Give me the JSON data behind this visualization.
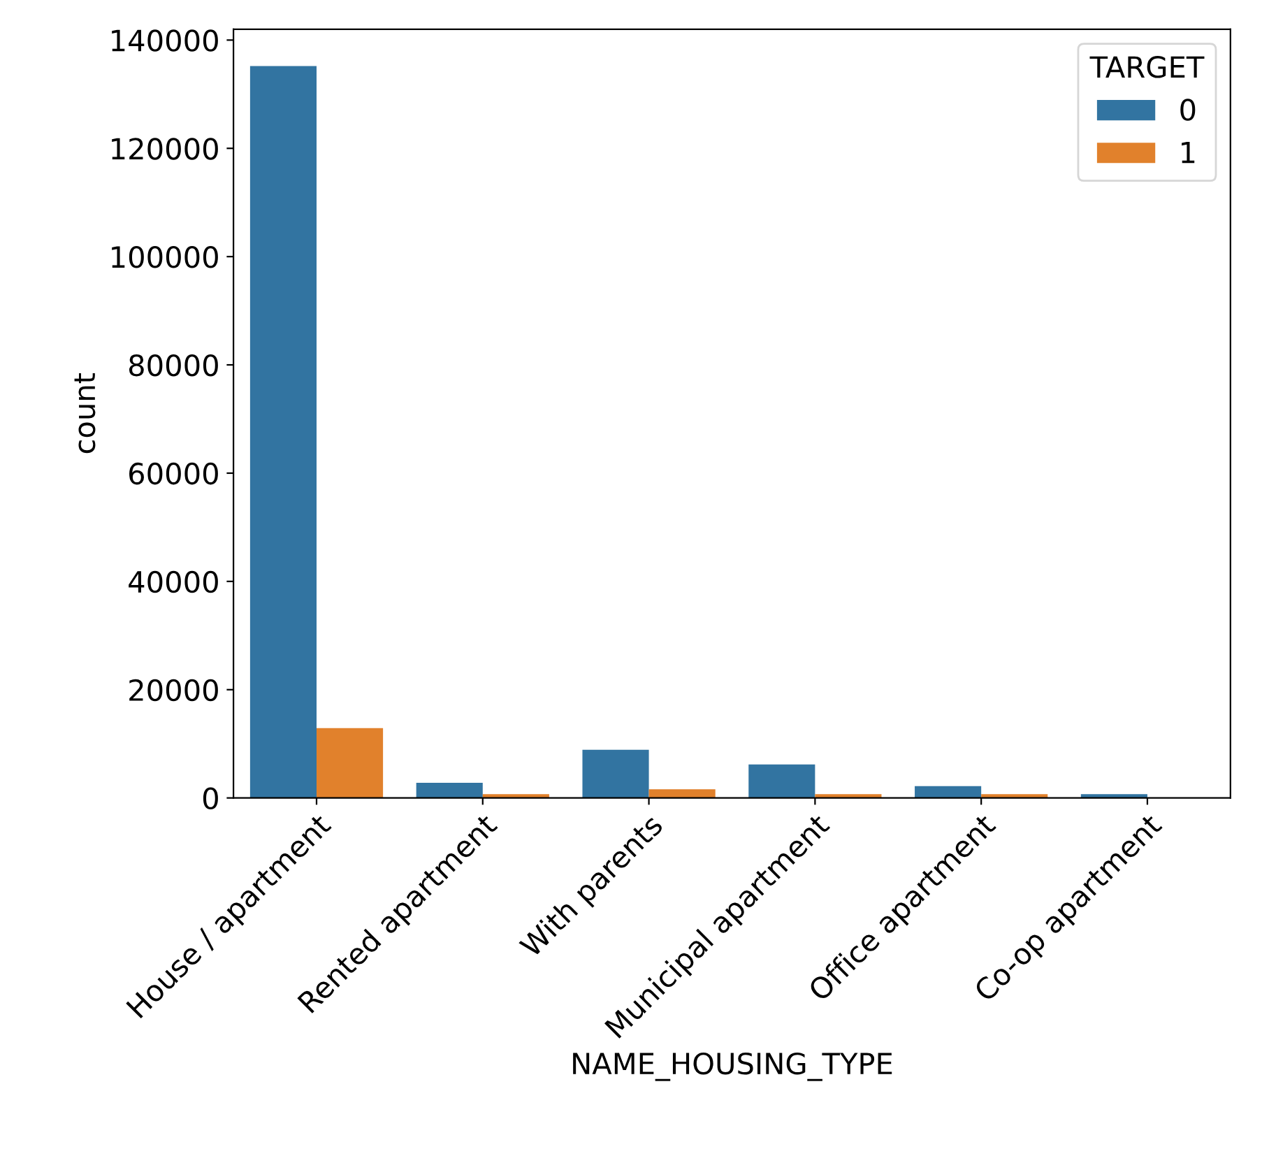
{
  "chart_data": {
    "type": "bar",
    "xlabel": "NAME_HOUSING_TYPE",
    "ylabel": "count",
    "legend_title": "TARGET",
    "legend": "top right",
    "grid": false,
    "categories": [
      "House / apartment",
      "Rented apartment",
      "With parents",
      "Municipal apartment",
      "Office apartment",
      "Co-op apartment"
    ],
    "series": [
      {
        "name": "0",
        "color": "#3274a1",
        "values": [
          135200,
          2800,
          8900,
          6200,
          2200,
          700
        ]
      },
      {
        "name": "1",
        "color": "#e1812c",
        "values": [
          12900,
          700,
          1600,
          700,
          700,
          100
        ]
      }
    ],
    "ylim": [
      0,
      142000
    ],
    "yticks": [
      0,
      20000,
      40000,
      60000,
      80000,
      100000,
      120000,
      140000
    ]
  }
}
